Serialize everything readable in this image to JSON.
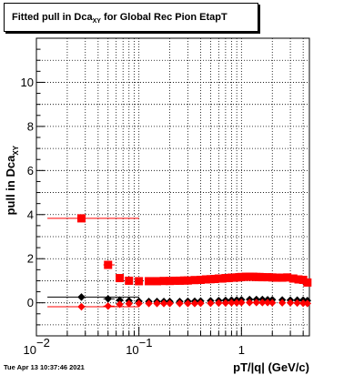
{
  "title": {
    "main": "Fitted pull in Dca",
    "sub": "XY",
    "rest": " for Global Rec Pion EtapT"
  },
  "footer": "Tue Apr 13 10:37:46 2021",
  "chart_data": {
    "type": "scatter",
    "xlabel": "pT/|q| (GeV/c)",
    "ylabel_main": "pull in Dca",
    "ylabel_sub": "XY",
    "xscale": "log",
    "xlim": [
      0.01,
      4.6
    ],
    "ylim": [
      -1.5,
      12.0
    ],
    "grid": true,
    "y_ticks": [
      {
        "v": 0,
        "label": "0"
      },
      {
        "v": 2,
        "label": "2"
      },
      {
        "v": 4,
        "label": "4"
      },
      {
        "v": 6,
        "label": "6"
      },
      {
        "v": 8,
        "label": "8"
      },
      {
        "v": 10,
        "label": "10"
      }
    ],
    "x_ticks": [
      {
        "v": 0.01,
        "base": "10",
        "exp": "−2"
      },
      {
        "v": 0.1,
        "base": "10",
        "exp": "−1"
      },
      {
        "v": 1,
        "base": "1",
        "exp": ""
      }
    ],
    "colors": {
      "black": "#000000",
      "red": "#ff0000"
    },
    "series": [
      {
        "marker": "square",
        "color": "#ff0000",
        "points": [
          {
            "x": 0.0275,
            "y": 3.83,
            "xerr": [
              0.0128,
              0.1005
            ]
          },
          {
            "x": 0.05,
            "y": 1.72,
            "xerr": [
              0.045,
              0.058
            ]
          },
          {
            "x": 0.065,
            "y": 1.12
          },
          {
            "x": 0.08,
            "y": 1.0
          },
          {
            "x": 0.1,
            "y": 0.98
          },
          {
            "x": 0.125,
            "y": 0.98
          },
          {
            "x": 0.15,
            "y": 0.98
          },
          {
            "x": 0.175,
            "y": 0.99
          },
          {
            "x": 0.2,
            "y": 0.99
          },
          {
            "x": 0.225,
            "y": 1.0
          },
          {
            "x": 0.25,
            "y": 1.0
          },
          {
            "x": 0.275,
            "y": 1.01
          },
          {
            "x": 0.3,
            "y": 1.01
          },
          {
            "x": 0.35,
            "y": 1.03
          },
          {
            "x": 0.4,
            "y": 1.04
          },
          {
            "x": 0.45,
            "y": 1.06
          },
          {
            "x": 0.5,
            "y": 1.07
          },
          {
            "x": 0.55,
            "y": 1.08
          },
          {
            "x": 0.6,
            "y": 1.1
          },
          {
            "x": 0.65,
            "y": 1.1
          },
          {
            "x": 0.7,
            "y": 1.12
          },
          {
            "x": 0.75,
            "y": 1.12
          },
          {
            "x": 0.8,
            "y": 1.14
          },
          {
            "x": 0.85,
            "y": 1.14
          },
          {
            "x": 0.9,
            "y": 1.15
          },
          {
            "x": 0.95,
            "y": 1.16
          },
          {
            "x": 1.0,
            "y": 1.17
          },
          {
            "x": 1.1,
            "y": 1.18
          },
          {
            "x": 1.2,
            "y": 1.18
          },
          {
            "x": 1.3,
            "y": 1.18
          },
          {
            "x": 1.4,
            "y": 1.17
          },
          {
            "x": 1.5,
            "y": 1.17
          },
          {
            "x": 1.6,
            "y": 1.16
          },
          {
            "x": 1.8,
            "y": 1.16
          },
          {
            "x": 2.0,
            "y": 1.15
          },
          {
            "x": 2.2,
            "y": 1.14
          },
          {
            "x": 2.5,
            "y": 1.14
          },
          {
            "x": 2.8,
            "y": 1.15
          },
          {
            "x": 3.2,
            "y": 1.1
          },
          {
            "x": 3.6,
            "y": 1.06
          },
          {
            "x": 4.0,
            "y": 1.04
          },
          {
            "x": 4.4,
            "y": 0.92
          }
        ]
      },
      {
        "marker": "diamond",
        "color": "#000000",
        "points": [
          {
            "x": 0.0275,
            "y": 0.26,
            "xerr": [
              0.0128,
              0.1005
            ]
          },
          {
            "x": 0.05,
            "y": 0.18,
            "xerr": [
              0.045,
              0.058
            ]
          },
          {
            "x": 0.065,
            "y": 0.12
          },
          {
            "x": 0.08,
            "y": 0.09
          },
          {
            "x": 0.1,
            "y": 0.07
          },
          {
            "x": 0.125,
            "y": 0.06
          },
          {
            "x": 0.15,
            "y": 0.06
          },
          {
            "x": 0.175,
            "y": 0.06
          },
          {
            "x": 0.2,
            "y": 0.06
          },
          {
            "x": 0.25,
            "y": 0.06
          },
          {
            "x": 0.3,
            "y": 0.07
          },
          {
            "x": 0.35,
            "y": 0.07
          },
          {
            "x": 0.4,
            "y": 0.08
          },
          {
            "x": 0.5,
            "y": 0.09
          },
          {
            "x": 0.6,
            "y": 0.1
          },
          {
            "x": 0.7,
            "y": 0.11
          },
          {
            "x": 0.8,
            "y": 0.12
          },
          {
            "x": 0.9,
            "y": 0.13
          },
          {
            "x": 1.0,
            "y": 0.14
          },
          {
            "x": 1.2,
            "y": 0.15
          },
          {
            "x": 1.4,
            "y": 0.15
          },
          {
            "x": 1.6,
            "y": 0.15
          },
          {
            "x": 1.8,
            "y": 0.14
          },
          {
            "x": 2.0,
            "y": 0.14
          },
          {
            "x": 2.5,
            "y": 0.13
          },
          {
            "x": 3.0,
            "y": 0.12
          },
          {
            "x": 3.5,
            "y": 0.12
          },
          {
            "x": 4.0,
            "y": 0.12
          },
          {
            "x": 4.4,
            "y": 0.1
          }
        ]
      },
      {
        "marker": "diamond",
        "color": "#ff0000",
        "points": [
          {
            "x": 0.0275,
            "y": -0.18,
            "xerr": [
              0.0128,
              0.1005
            ]
          },
          {
            "x": 0.05,
            "y": -0.15,
            "xerr": [
              0.045,
              0.058
            ]
          },
          {
            "x": 0.065,
            "y": -0.07
          },
          {
            "x": 0.08,
            "y": -0.04
          },
          {
            "x": 0.1,
            "y": -0.03
          },
          {
            "x": 0.125,
            "y": -0.03
          },
          {
            "x": 0.15,
            "y": -0.03
          },
          {
            "x": 0.175,
            "y": -0.03
          },
          {
            "x": 0.2,
            "y": -0.03
          },
          {
            "x": 0.25,
            "y": -0.03
          },
          {
            "x": 0.3,
            "y": -0.03
          },
          {
            "x": 0.35,
            "y": -0.03
          },
          {
            "x": 0.4,
            "y": -0.02
          },
          {
            "x": 0.5,
            "y": -0.02
          },
          {
            "x": 0.6,
            "y": -0.01
          },
          {
            "x": 0.7,
            "y": -0.01
          },
          {
            "x": 0.8,
            "y": 0.0
          },
          {
            "x": 0.9,
            "y": 0.0
          },
          {
            "x": 1.0,
            "y": 0.01
          },
          {
            "x": 1.2,
            "y": 0.01
          },
          {
            "x": 1.4,
            "y": 0.01
          },
          {
            "x": 1.6,
            "y": 0.01
          },
          {
            "x": 1.8,
            "y": 0.01
          },
          {
            "x": 2.0,
            "y": 0.0
          },
          {
            "x": 2.5,
            "y": 0.0
          },
          {
            "x": 3.0,
            "y": 0.0
          },
          {
            "x": 3.5,
            "y": -0.01
          },
          {
            "x": 4.0,
            "y": -0.02
          },
          {
            "x": 4.4,
            "y": -0.03
          }
        ]
      }
    ]
  }
}
